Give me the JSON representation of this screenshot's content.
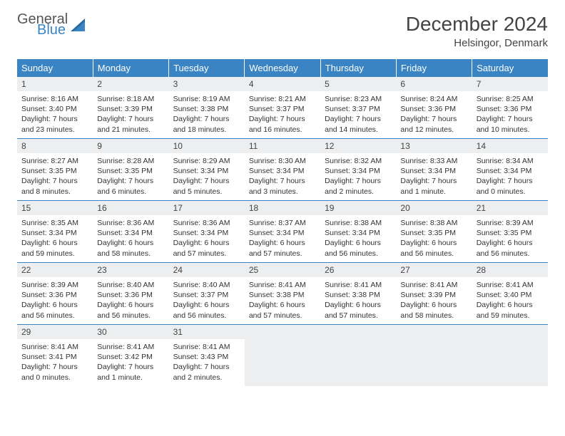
{
  "brand": {
    "general": "General",
    "blue": "Blue",
    "accent_color": "#3a84c4"
  },
  "title": "December 2024",
  "location": "Helsingor, Denmark",
  "day_headers": [
    "Sunday",
    "Monday",
    "Tuesday",
    "Wednesday",
    "Thursday",
    "Friday",
    "Saturday"
  ],
  "colors": {
    "header_bg": "#3a84c4",
    "header_text": "#ffffff",
    "daynum_bg": "#eceef0",
    "cell_border": "#3a84c4",
    "body_text": "#333333"
  },
  "typography": {
    "title_size_pt": 21,
    "location_size_pt": 11,
    "header_size_pt": 10,
    "daynum_size_pt": 9,
    "data_size_pt": 8
  },
  "weeks": [
    [
      {
        "n": "1",
        "sr": "Sunrise: 8:16 AM",
        "ss": "Sunset: 3:40 PM",
        "d1": "Daylight: 7 hours",
        "d2": "and 23 minutes."
      },
      {
        "n": "2",
        "sr": "Sunrise: 8:18 AM",
        "ss": "Sunset: 3:39 PM",
        "d1": "Daylight: 7 hours",
        "d2": "and 21 minutes."
      },
      {
        "n": "3",
        "sr": "Sunrise: 8:19 AM",
        "ss": "Sunset: 3:38 PM",
        "d1": "Daylight: 7 hours",
        "d2": "and 18 minutes."
      },
      {
        "n": "4",
        "sr": "Sunrise: 8:21 AM",
        "ss": "Sunset: 3:37 PM",
        "d1": "Daylight: 7 hours",
        "d2": "and 16 minutes."
      },
      {
        "n": "5",
        "sr": "Sunrise: 8:23 AM",
        "ss": "Sunset: 3:37 PM",
        "d1": "Daylight: 7 hours",
        "d2": "and 14 minutes."
      },
      {
        "n": "6",
        "sr": "Sunrise: 8:24 AM",
        "ss": "Sunset: 3:36 PM",
        "d1": "Daylight: 7 hours",
        "d2": "and 12 minutes."
      },
      {
        "n": "7",
        "sr": "Sunrise: 8:25 AM",
        "ss": "Sunset: 3:36 PM",
        "d1": "Daylight: 7 hours",
        "d2": "and 10 minutes."
      }
    ],
    [
      {
        "n": "8",
        "sr": "Sunrise: 8:27 AM",
        "ss": "Sunset: 3:35 PM",
        "d1": "Daylight: 7 hours",
        "d2": "and 8 minutes."
      },
      {
        "n": "9",
        "sr": "Sunrise: 8:28 AM",
        "ss": "Sunset: 3:35 PM",
        "d1": "Daylight: 7 hours",
        "d2": "and 6 minutes."
      },
      {
        "n": "10",
        "sr": "Sunrise: 8:29 AM",
        "ss": "Sunset: 3:34 PM",
        "d1": "Daylight: 7 hours",
        "d2": "and 5 minutes."
      },
      {
        "n": "11",
        "sr": "Sunrise: 8:30 AM",
        "ss": "Sunset: 3:34 PM",
        "d1": "Daylight: 7 hours",
        "d2": "and 3 minutes."
      },
      {
        "n": "12",
        "sr": "Sunrise: 8:32 AM",
        "ss": "Sunset: 3:34 PM",
        "d1": "Daylight: 7 hours",
        "d2": "and 2 minutes."
      },
      {
        "n": "13",
        "sr": "Sunrise: 8:33 AM",
        "ss": "Sunset: 3:34 PM",
        "d1": "Daylight: 7 hours",
        "d2": "and 1 minute."
      },
      {
        "n": "14",
        "sr": "Sunrise: 8:34 AM",
        "ss": "Sunset: 3:34 PM",
        "d1": "Daylight: 7 hours",
        "d2": "and 0 minutes."
      }
    ],
    [
      {
        "n": "15",
        "sr": "Sunrise: 8:35 AM",
        "ss": "Sunset: 3:34 PM",
        "d1": "Daylight: 6 hours",
        "d2": "and 59 minutes."
      },
      {
        "n": "16",
        "sr": "Sunrise: 8:36 AM",
        "ss": "Sunset: 3:34 PM",
        "d1": "Daylight: 6 hours",
        "d2": "and 58 minutes."
      },
      {
        "n": "17",
        "sr": "Sunrise: 8:36 AM",
        "ss": "Sunset: 3:34 PM",
        "d1": "Daylight: 6 hours",
        "d2": "and 57 minutes."
      },
      {
        "n": "18",
        "sr": "Sunrise: 8:37 AM",
        "ss": "Sunset: 3:34 PM",
        "d1": "Daylight: 6 hours",
        "d2": "and 57 minutes."
      },
      {
        "n": "19",
        "sr": "Sunrise: 8:38 AM",
        "ss": "Sunset: 3:34 PM",
        "d1": "Daylight: 6 hours",
        "d2": "and 56 minutes."
      },
      {
        "n": "20",
        "sr": "Sunrise: 8:38 AM",
        "ss": "Sunset: 3:35 PM",
        "d1": "Daylight: 6 hours",
        "d2": "and 56 minutes."
      },
      {
        "n": "21",
        "sr": "Sunrise: 8:39 AM",
        "ss": "Sunset: 3:35 PM",
        "d1": "Daylight: 6 hours",
        "d2": "and 56 minutes."
      }
    ],
    [
      {
        "n": "22",
        "sr": "Sunrise: 8:39 AM",
        "ss": "Sunset: 3:36 PM",
        "d1": "Daylight: 6 hours",
        "d2": "and 56 minutes."
      },
      {
        "n": "23",
        "sr": "Sunrise: 8:40 AM",
        "ss": "Sunset: 3:36 PM",
        "d1": "Daylight: 6 hours",
        "d2": "and 56 minutes."
      },
      {
        "n": "24",
        "sr": "Sunrise: 8:40 AM",
        "ss": "Sunset: 3:37 PM",
        "d1": "Daylight: 6 hours",
        "d2": "and 56 minutes."
      },
      {
        "n": "25",
        "sr": "Sunrise: 8:41 AM",
        "ss": "Sunset: 3:38 PM",
        "d1": "Daylight: 6 hours",
        "d2": "and 57 minutes."
      },
      {
        "n": "26",
        "sr": "Sunrise: 8:41 AM",
        "ss": "Sunset: 3:38 PM",
        "d1": "Daylight: 6 hours",
        "d2": "and 57 minutes."
      },
      {
        "n": "27",
        "sr": "Sunrise: 8:41 AM",
        "ss": "Sunset: 3:39 PM",
        "d1": "Daylight: 6 hours",
        "d2": "and 58 minutes."
      },
      {
        "n": "28",
        "sr": "Sunrise: 8:41 AM",
        "ss": "Sunset: 3:40 PM",
        "d1": "Daylight: 6 hours",
        "d2": "and 59 minutes."
      }
    ],
    [
      {
        "n": "29",
        "sr": "Sunrise: 8:41 AM",
        "ss": "Sunset: 3:41 PM",
        "d1": "Daylight: 7 hours",
        "d2": "and 0 minutes."
      },
      {
        "n": "30",
        "sr": "Sunrise: 8:41 AM",
        "ss": "Sunset: 3:42 PM",
        "d1": "Daylight: 7 hours",
        "d2": "and 1 minute."
      },
      {
        "n": "31",
        "sr": "Sunrise: 8:41 AM",
        "ss": "Sunset: 3:43 PM",
        "d1": "Daylight: 7 hours",
        "d2": "and 2 minutes."
      },
      null,
      null,
      null,
      null
    ]
  ]
}
